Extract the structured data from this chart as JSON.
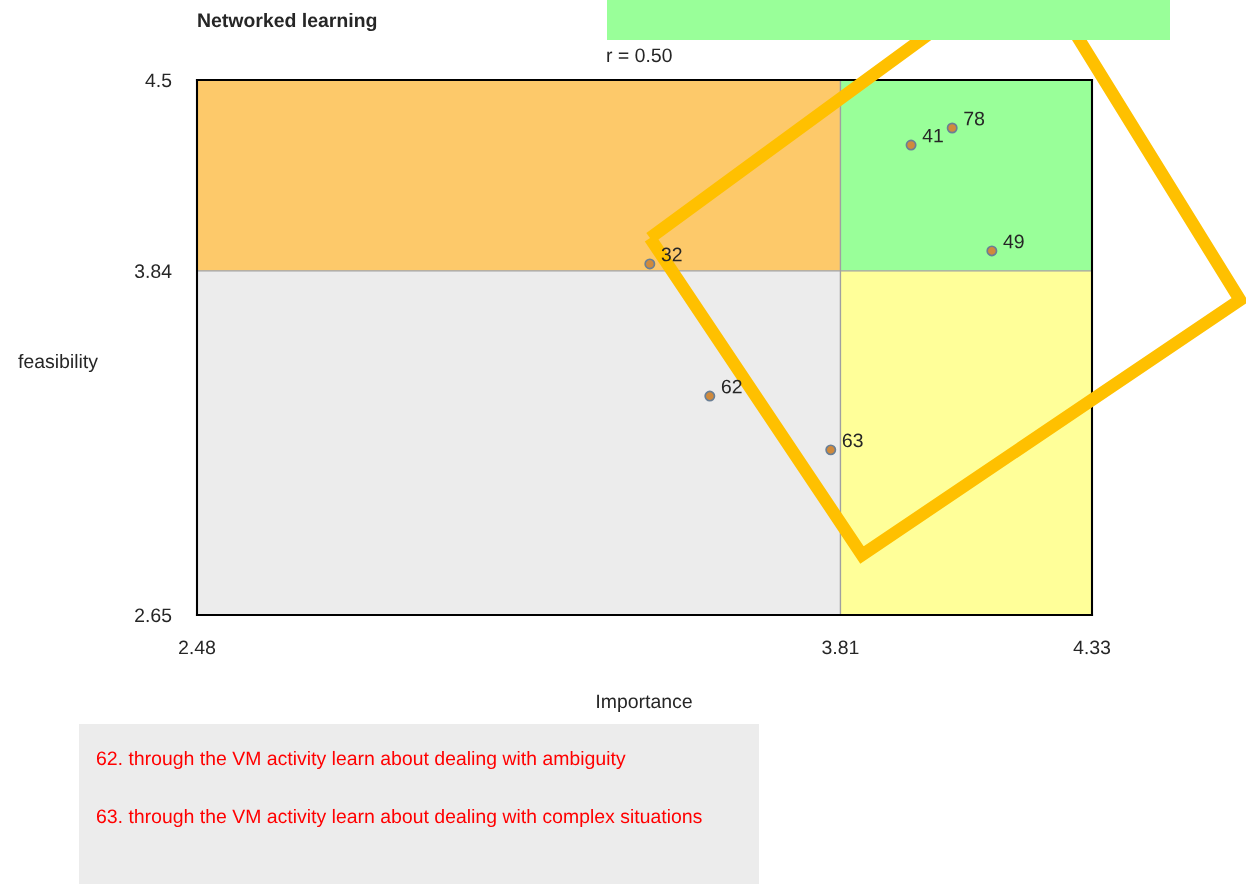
{
  "chart_data": {
    "type": "scatter",
    "title": "Networked learning",
    "xlabel": "Importance",
    "ylabel": "feasibility",
    "x": [
      3.956,
      4.041,
      4.123,
      3.416,
      3.54,
      3.79
    ],
    "series": [
      {
        "color": "#d08a3c",
        "values": [
          4.275,
          4.334,
          3.909,
          3.864,
          3.407,
          3.221
        ]
      }
    ],
    "xlim": [
      2.48,
      4.33
    ],
    "xticks": [
      2.48,
      3.81,
      4.33
    ],
    "ylim": [
      2.65,
      4.5
    ],
    "yticks": [
      2.65,
      3.84,
      4.5
    ],
    "grid": false,
    "legend": false,
    "marker": "circle",
    "ref_lines": [
      {
        "axis": "x",
        "value": 3.81,
        "color": "#a0a0a0"
      },
      {
        "axis": "y",
        "value": 3.84,
        "color": "#a0a0a0"
      }
    ],
    "bands": [
      {
        "axis": "y",
        "from": 3.84,
        "to": 4.5,
        "color": "#fdc96a"
      },
      {
        "axis": "y",
        "from": 2.65,
        "to": 3.84,
        "color": "#ececec"
      }
    ],
    "annotations": [
      {
        "text": "41",
        "x": 3.956,
        "y": 4.275
      },
      {
        "text": "78",
        "x": 4.041,
        "y": 4.334
      },
      {
        "text": "49",
        "x": 4.123,
        "y": 3.909
      },
      {
        "text": "32",
        "x": 3.416,
        "y": 3.864
      },
      {
        "text": "62",
        "x": 3.54,
        "y": 3.407
      },
      {
        "text": "63",
        "x": 3.79,
        "y": 3.221
      },
      "r = 0.50",
      "62. through the VM activity learn about dealing with ambiguity",
      "63. through the VM activity learn about dealing with complex situations"
    ]
  }
}
